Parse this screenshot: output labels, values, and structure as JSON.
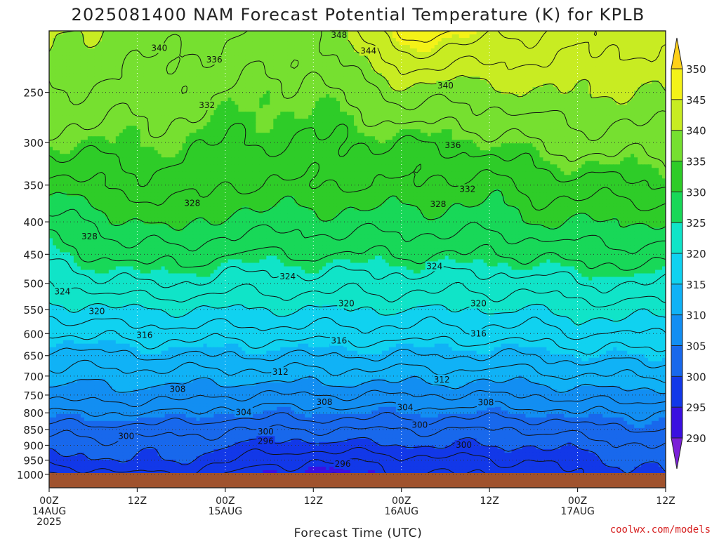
{
  "chart_data": {
    "type": "heatmap",
    "title": "2025081400 NAM Forecast Potential Temperature (K) for KPLB",
    "xlabel": "Forecast Time (UTC)",
    "ylabel": "",
    "x_ticks": [
      {
        "h": 0,
        "line1": "00Z",
        "line2": "14AUG",
        "line3": "2025"
      },
      {
        "h": 12,
        "line1": "12Z",
        "line2": "",
        "line3": ""
      },
      {
        "h": 24,
        "line1": "00Z",
        "line2": "15AUG",
        "line3": ""
      },
      {
        "h": 36,
        "line1": "12Z",
        "line2": "",
        "line3": ""
      },
      {
        "h": 48,
        "line1": "00Z",
        "line2": "16AUG",
        "line3": ""
      },
      {
        "h": 60,
        "line1": "12Z",
        "line2": "",
        "line3": ""
      },
      {
        "h": 72,
        "line1": "00Z",
        "line2": "17AUG",
        "line3": ""
      },
      {
        "h": 84,
        "line1": "12Z",
        "line2": "",
        "line3": ""
      }
    ],
    "xlim": [
      0,
      84
    ],
    "ylim_hPa": [
      1050,
      200
    ],
    "y_scale": "log",
    "y_ticks": [
      250,
      300,
      350,
      400,
      450,
      500,
      550,
      600,
      650,
      700,
      750,
      800,
      850,
      900,
      950,
      1000
    ],
    "grid": true,
    "colorbar": {
      "levels": [
        290,
        295,
        300,
        305,
        310,
        315,
        320,
        325,
        330,
        335,
        340,
        345,
        350
      ],
      "labels": [
        "350",
        "345",
        "340",
        "335",
        "330",
        "325",
        "320",
        "315",
        "310",
        "305",
        "300",
        "295",
        "290"
      ],
      "colors": [
        "#7b20d8",
        "#3a10e0",
        "#1238e8",
        "#1868ec",
        "#128ef2",
        "#10b2f6",
        "#10d2f0",
        "#10e4c8",
        "#18d858",
        "#2ecc28",
        "#76e030",
        "#c8ec22",
        "#f4f218",
        "#ffd018"
      ]
    },
    "profile_hours": [
      0,
      12,
      18,
      24,
      36,
      48,
      60,
      66,
      72,
      84
    ],
    "profile_pressure_hPa": [
      1000,
      950,
      900,
      850,
      800,
      750,
      700,
      650,
      600,
      550,
      500,
      450,
      400,
      350,
      300,
      250,
      200
    ],
    "theta_K": [
      [
        296,
        299,
        301,
        303,
        306,
        309,
        311,
        313,
        316,
        319,
        322,
        325,
        327,
        331,
        335,
        338,
        341
      ],
      [
        298,
        300,
        301,
        303,
        306,
        309,
        311,
        314,
        317,
        320,
        324,
        327,
        330,
        333,
        335,
        337,
        339
      ],
      [
        298,
        300,
        301,
        303,
        306,
        309,
        311,
        314,
        317,
        320,
        324,
        327,
        331,
        333,
        335,
        337,
        339
      ],
      [
        296,
        298,
        300,
        302,
        305,
        308,
        311,
        314,
        317,
        320,
        323,
        326,
        329,
        332,
        334,
        336,
        338
      ],
      [
        294,
        296,
        299,
        302,
        305,
        308,
        311,
        314,
        317,
        320,
        323,
        326,
        329,
        332,
        334,
        335,
        337
      ],
      [
        296,
        297,
        300,
        302,
        305,
        308,
        311,
        314,
        317,
        320,
        323,
        326,
        329,
        332,
        334,
        339,
        347
      ],
      [
        296,
        298,
        300,
        302,
        305,
        308,
        311,
        314,
        317,
        320,
        323,
        326,
        329,
        331,
        335,
        339,
        345
      ],
      [
        297,
        298,
        300,
        302,
        305,
        308,
        311,
        314,
        317,
        320,
        323,
        326,
        330,
        333,
        336,
        340,
        344
      ],
      [
        298,
        299,
        301,
        303,
        306,
        309,
        312,
        315,
        318,
        321,
        324,
        327,
        330,
        333,
        337,
        340,
        343
      ],
      [
        300,
        301,
        302,
        304,
        306,
        309,
        312,
        315,
        318,
        321,
        324,
        327,
        330,
        334,
        337,
        340,
        343
      ]
    ],
    "contour_interval_K": 2,
    "contour_labels": [
      {
        "text": "348",
        "h": 39.5,
        "p": 203
      },
      {
        "text": "344",
        "h": 43.5,
        "p": 215
      },
      {
        "text": "340",
        "h": 15,
        "p": 213
      },
      {
        "text": "340",
        "h": 54,
        "p": 244
      },
      {
        "text": "336",
        "h": 22.5,
        "p": 222
      },
      {
        "text": "336",
        "h": 55,
        "p": 303
      },
      {
        "text": "332",
        "h": 21.5,
        "p": 262
      },
      {
        "text": "332",
        "h": 57,
        "p": 355
      },
      {
        "text": "328",
        "h": 19.5,
        "p": 374
      },
      {
        "text": "328",
        "h": 53,
        "p": 375
      },
      {
        "text": "328",
        "h": 5.5,
        "p": 422
      },
      {
        "text": "324",
        "h": 1.8,
        "p": 515
      },
      {
        "text": "324",
        "h": 32.5,
        "p": 488
      },
      {
        "text": "324",
        "h": 52.5,
        "p": 470
      },
      {
        "text": "320",
        "h": 6.5,
        "p": 553
      },
      {
        "text": "320",
        "h": 40.5,
        "p": 538
      },
      {
        "text": "320",
        "h": 58.5,
        "p": 538
      },
      {
        "text": "316",
        "h": 13,
        "p": 603
      },
      {
        "text": "316",
        "h": 39.5,
        "p": 616
      },
      {
        "text": "316",
        "h": 58.5,
        "p": 600
      },
      {
        "text": "312",
        "h": 31.5,
        "p": 690
      },
      {
        "text": "312",
        "h": 53.5,
        "p": 709
      },
      {
        "text": "308",
        "h": 17.5,
        "p": 734
      },
      {
        "text": "308",
        "h": 37.5,
        "p": 770
      },
      {
        "text": "308",
        "h": 59.5,
        "p": 771
      },
      {
        "text": "304",
        "h": 26.5,
        "p": 798
      },
      {
        "text": "304",
        "h": 48.5,
        "p": 784
      },
      {
        "text": "300",
        "h": 10.5,
        "p": 871
      },
      {
        "text": "300",
        "h": 29.5,
        "p": 856
      },
      {
        "text": "300",
        "h": 50.5,
        "p": 836
      },
      {
        "text": "300",
        "h": 56.5,
        "p": 899
      },
      {
        "text": "296",
        "h": 29.5,
        "p": 886
      },
      {
        "text": "296",
        "h": 40,
        "p": 963
      }
    ]
  },
  "credit": "coolwx.com/models"
}
